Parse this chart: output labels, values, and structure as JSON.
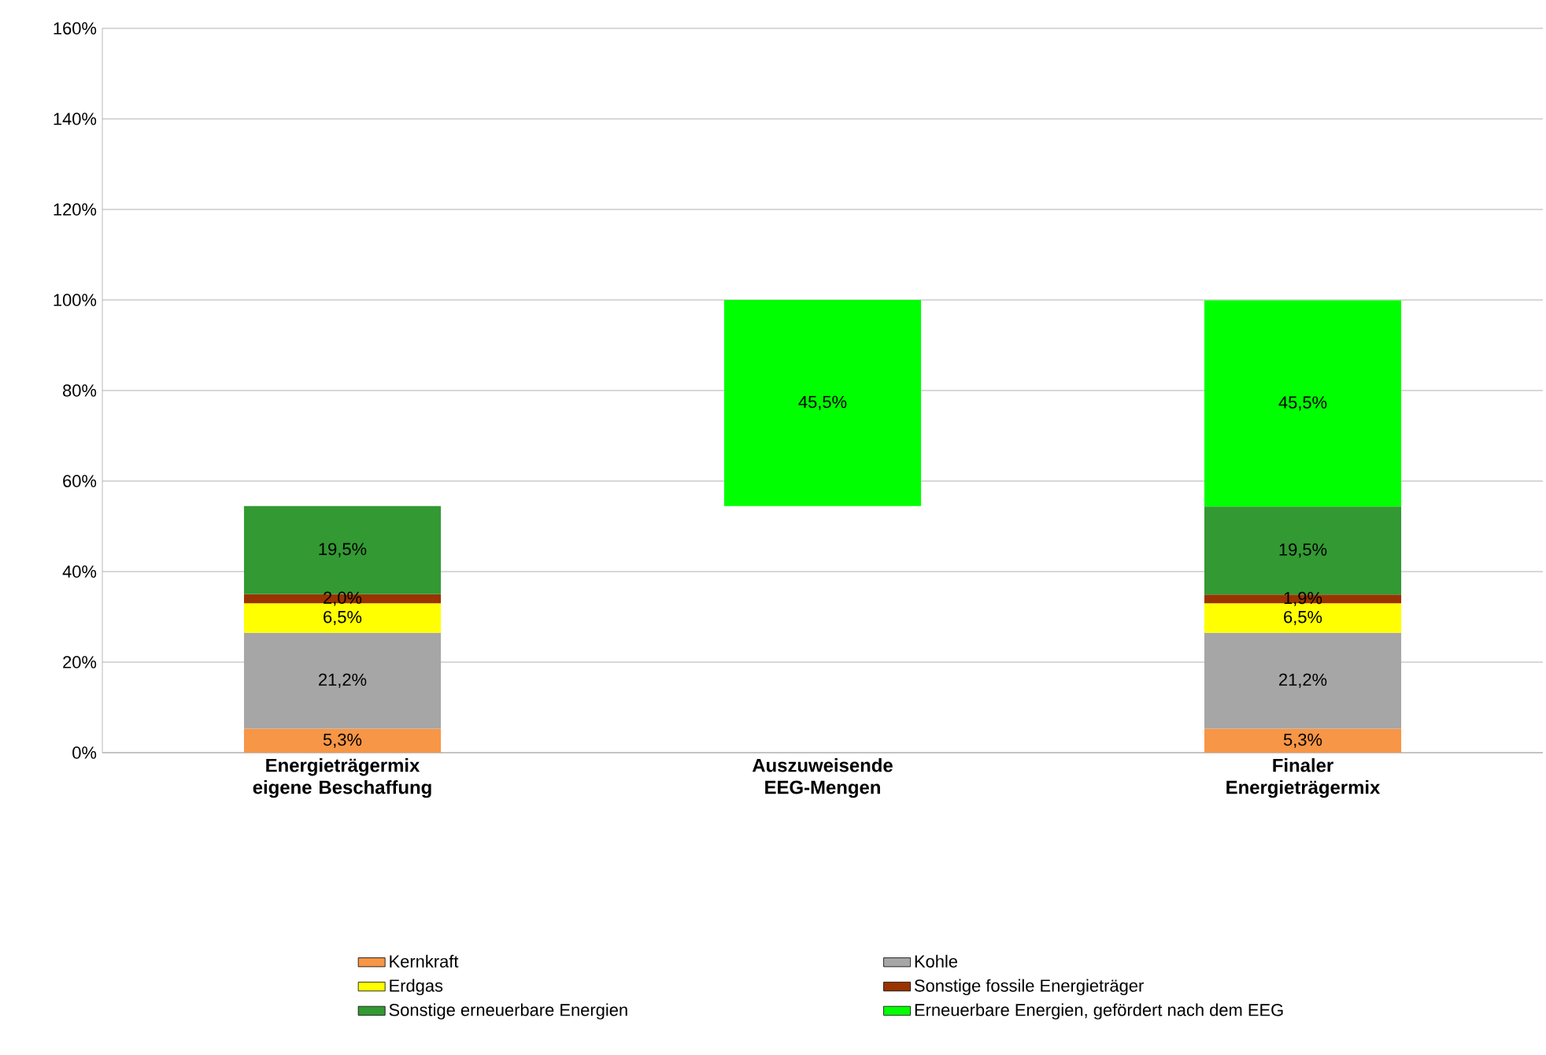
{
  "chart_data": {
    "type": "bar",
    "stacked": true,
    "categories": [
      "Energieträgermix eigene Beschaffung",
      "Auszuweisende EEG-Mengen",
      "Finaler Energieträgermix"
    ],
    "series": [
      {
        "name": "Kernkraft",
        "color": "#f79646",
        "values": [
          5.3,
          null,
          5.3
        ],
        "value_labels": [
          "5,3%",
          null,
          "5,3%"
        ]
      },
      {
        "name": "Kohle",
        "color": "#a6a6a6",
        "values": [
          21.2,
          null,
          21.2
        ],
        "value_labels": [
          "21,2%",
          null,
          "21,2%"
        ]
      },
      {
        "name": "Erdgas",
        "color": "#ffff00",
        "values": [
          6.5,
          null,
          6.5
        ],
        "value_labels": [
          "6,5%",
          null,
          "6,5%"
        ]
      },
      {
        "name": "Sonstige fossile Energieträger",
        "color": "#993300",
        "values": [
          2.0,
          null,
          1.9
        ],
        "value_labels": [
          "2,0%",
          null,
          "1,9%"
        ]
      },
      {
        "name": "Sonstige erneuerbare Energien",
        "color": "#339933",
        "values": [
          19.5,
          null,
          19.5
        ],
        "value_labels": [
          "19,5%",
          null,
          "19,5%"
        ]
      },
      {
        "name": "Erneuerbare Energien, gefördert nach dem EEG",
        "color": "#00ff00",
        "base": [
          null,
          54.5,
          null
        ],
        "values": [
          null,
          45.5,
          45.5
        ],
        "value_labels": [
          null,
          "45,5%",
          "45,5%"
        ]
      }
    ],
    "ylim": [
      0,
      160
    ],
    "yticks": [
      {
        "value": 0,
        "label": "0%"
      },
      {
        "value": 20,
        "label": "20%"
      },
      {
        "value": 40,
        "label": "40%"
      },
      {
        "value": 60,
        "label": "60%"
      },
      {
        "value": 80,
        "label": "80%"
      },
      {
        "value": 100,
        "label": "100%"
      },
      {
        "value": 120,
        "label": "120%"
      },
      {
        "value": 140,
        "label": "140%"
      },
      {
        "value": 160,
        "label": "160%"
      }
    ],
    "grid": "y",
    "legend": "bottom"
  }
}
